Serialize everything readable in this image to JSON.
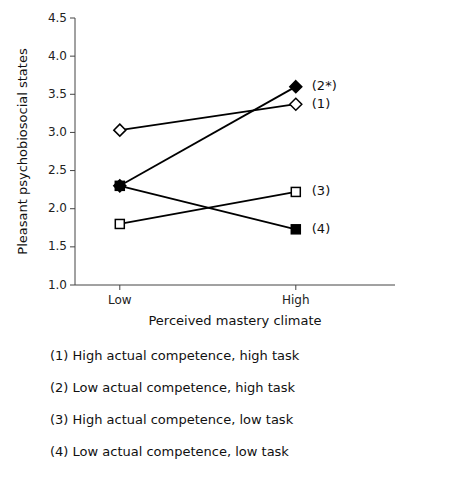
{
  "chart_data": {
    "type": "line",
    "xlabel": "Perceived mastery climate",
    "ylabel": "Pleasant psychobiosocial states",
    "categories": [
      "Low",
      "High"
    ],
    "series": [
      {
        "name": "(1)",
        "color": "black",
        "marker": "diamond-open",
        "values": [
          3.03,
          3.37
        ]
      },
      {
        "name": "(2*)",
        "color": "black",
        "marker": "diamond",
        "values": [
          2.3,
          3.6
        ]
      },
      {
        "name": "(3)",
        "color": "black",
        "marker": "square-open",
        "values": [
          1.8,
          2.22
        ]
      },
      {
        "name": "(4)",
        "color": "black",
        "marker": "square",
        "values": [
          2.3,
          1.73
        ]
      }
    ],
    "ylim": [
      1.0,
      4.5
    ],
    "yticks": [
      {
        "value": 1.0,
        "label": "1.0"
      },
      1.5,
      {
        "value": 2.0,
        "label": "2.0"
      },
      2.5,
      {
        "value": 3.0,
        "label": "3.0"
      },
      3.5,
      {
        "value": 4.0,
        "label": "4.0"
      },
      4.5
    ],
    "annotations": [
      "(1) High actual competence, high task",
      "(2) Low actual competence, high task",
      "(3) High actual competence, low task",
      "(4) Low actual competence, low task"
    ],
    "background_color": "#ffffff"
  }
}
